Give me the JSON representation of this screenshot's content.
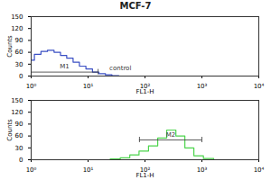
{
  "chart_data": [
    {
      "type": "line",
      "title": "MCF-7",
      "x": [
        1,
        1.3,
        1.7,
        2.2,
        2.9,
        3.7,
        4.8,
        6.2,
        8,
        10.5,
        13.6,
        17.7,
        23,
        30,
        40
      ],
      "series": [
        {
          "name": "control",
          "color": "#3a4fc4",
          "values": [
            40,
            55,
            62,
            65,
            60,
            52,
            45,
            35,
            25,
            18,
            10,
            6,
            3,
            1,
            0
          ]
        }
      ],
      "log": "x",
      "xlim": [
        1,
        10000
      ],
      "xticks": [
        {
          "value": 1,
          "label": "10⁰"
        },
        {
          "value": 10,
          "label": "10¹"
        },
        {
          "value": 100,
          "label": "10²"
        },
        {
          "value": 1000,
          "label": "10³"
        },
        {
          "value": 10000,
          "label": "10⁴"
        }
      ],
      "ylim": [
        0,
        150
      ],
      "yticks": [
        0,
        30,
        60,
        90,
        120,
        150
      ],
      "x_label": "FL1-H",
      "y_label": "Counts",
      "markers": [
        {
          "label": "M1",
          "x1": 1,
          "x2": 15,
          "y": 10
        }
      ],
      "annotations": [
        {
          "text": "control",
          "x": 22,
          "y": 20
        }
      ]
    },
    {
      "type": "line",
      "x": [
        20,
        30,
        45,
        65,
        95,
        140,
        200,
        290,
        420,
        600,
        870,
        1300,
        2000
      ],
      "series": [
        {
          "name": "MCF-7",
          "color": "#4cd44c",
          "values": [
            0,
            2,
            5,
            12,
            22,
            35,
            55,
            75,
            60,
            30,
            10,
            3,
            0
          ]
        }
      ],
      "log": "x",
      "xlim": [
        1,
        10000
      ],
      "xticks": [
        {
          "value": 1,
          "label": "10⁰"
        },
        {
          "value": 10,
          "label": "10¹"
        },
        {
          "value": 100,
          "label": "10²"
        },
        {
          "value": 1000,
          "label": "10³"
        },
        {
          "value": 10000,
          "label": "10⁴"
        }
      ],
      "ylim": [
        0,
        150
      ],
      "yticks": [
        0,
        30,
        60,
        90,
        120,
        150
      ],
      "x_label": "FL1-H",
      "y_label": "Counts",
      "markers": [
        {
          "label": "M2",
          "x1": 80,
          "x2": 1000,
          "y": 50
        }
      ]
    }
  ]
}
